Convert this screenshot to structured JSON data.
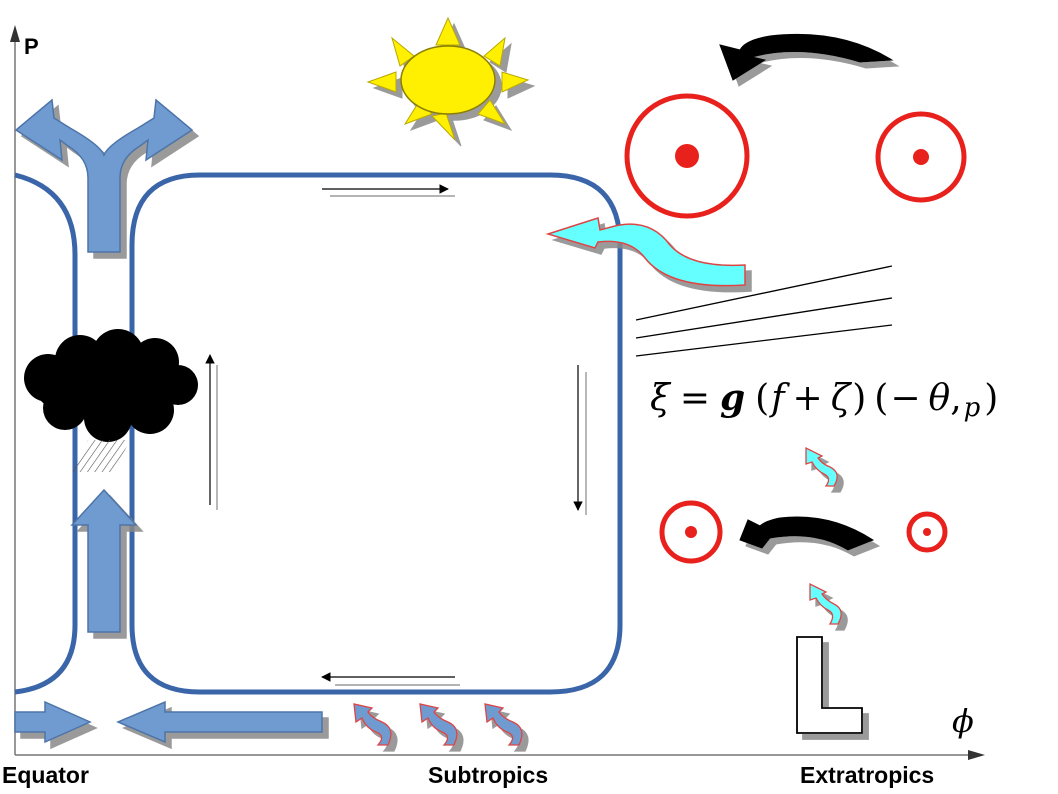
{
  "axes": {
    "y_label": "P",
    "x_label": "ϕ",
    "regions": [
      "Equator",
      "Subtropics",
      "Extratropics"
    ]
  },
  "equation": {
    "lhs": "ξ",
    "eq": "=",
    "g": "g",
    "open1": "(",
    "f": "f",
    "plus": "+",
    "zeta": "ζ",
    "close1": ")",
    "open2": "(",
    "minus": "−",
    "theta": "θ",
    "comma": ",",
    "p": "p",
    "close2": ")"
  },
  "colors": {
    "cell": "#3a65a8",
    "block_arrow": "#6f9bd1",
    "sun": "#ffef00",
    "anticyclone": "#e8211d",
    "cyan_arrow": "#66ffff",
    "cloud": "#000000"
  },
  "icons": [
    "sun-icon",
    "cloud-icon",
    "rain-icon",
    "ring-vortex-icon",
    "curved-arrow-icon",
    "letter-L-icon"
  ]
}
